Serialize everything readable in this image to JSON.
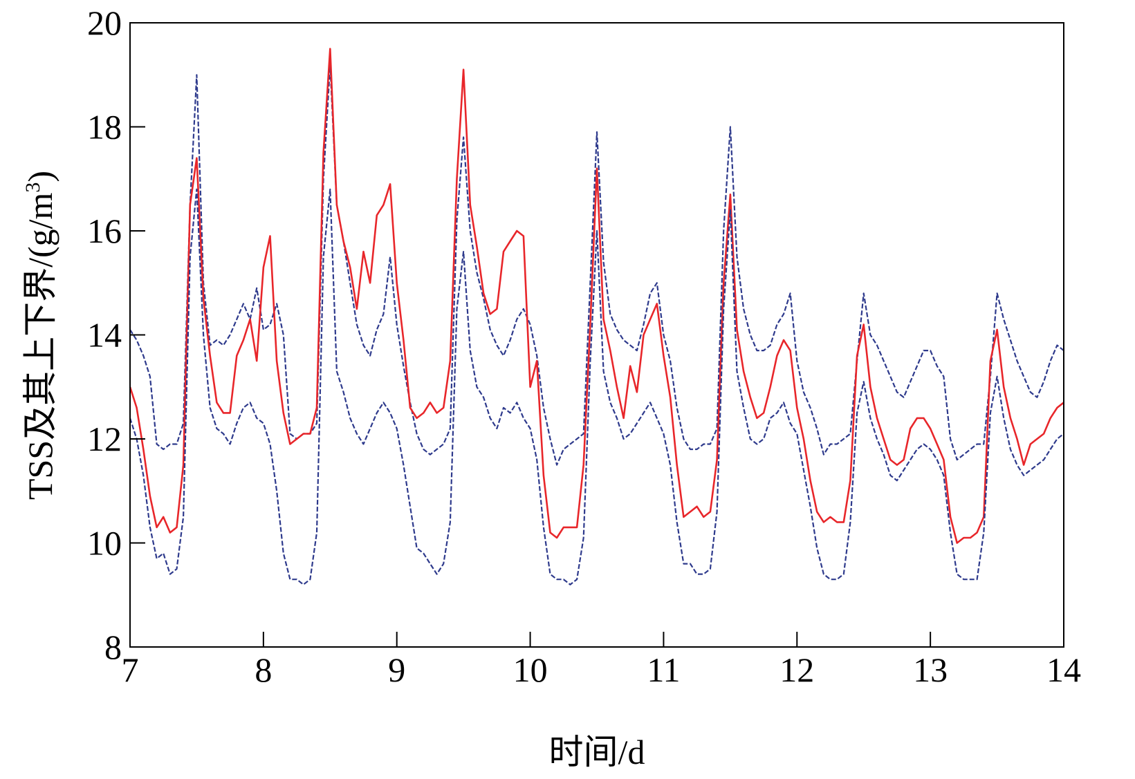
{
  "chart_data": {
    "type": "line",
    "title": "",
    "xlabel": "时间/d",
    "ylabel_main": "TSS及其上下界/(g/m",
    "ylabel_sup": "3",
    "ylabel_close": ")",
    "xlim": [
      7,
      14
    ],
    "ylim": [
      8,
      20
    ],
    "xticks": [
      7,
      8,
      9,
      10,
      11,
      12,
      13,
      14
    ],
    "yticks": [
      8,
      10,
      12,
      14,
      16,
      18,
      20
    ],
    "xtick_labels": [
      "7",
      "8",
      "9",
      "10",
      "11",
      "12",
      "13",
      "14"
    ],
    "ytick_labels": [
      "8",
      "10",
      "12",
      "14",
      "16",
      "18",
      "20"
    ],
    "grid": false,
    "legend": "none",
    "series": [
      {
        "role": "upper bound",
        "color": "#2e3a8c",
        "style": "dashed",
        "x": [
          7.0,
          7.05,
          7.1,
          7.15,
          7.2,
          7.25,
          7.3,
          7.35,
          7.4,
          7.45,
          7.5,
          7.55,
          7.6,
          7.65,
          7.7,
          7.75,
          7.8,
          7.85,
          7.9,
          7.95,
          8.0,
          8.05,
          8.1,
          8.15,
          8.2,
          8.25,
          8.3,
          8.35,
          8.4,
          8.45,
          8.5,
          8.55,
          8.6,
          8.65,
          8.7,
          8.75,
          8.8,
          8.85,
          8.9,
          8.95,
          9.0,
          9.05,
          9.1,
          9.15,
          9.2,
          9.25,
          9.3,
          9.35,
          9.4,
          9.45,
          9.5,
          9.55,
          9.6,
          9.65,
          9.7,
          9.75,
          9.8,
          9.85,
          9.9,
          9.95,
          10.0,
          10.05,
          10.1,
          10.15,
          10.2,
          10.25,
          10.3,
          10.35,
          10.4,
          10.45,
          10.5,
          10.55,
          10.6,
          10.65,
          10.7,
          10.75,
          10.8,
          10.85,
          10.9,
          10.95,
          11.0,
          11.05,
          11.1,
          11.15,
          11.2,
          11.25,
          11.3,
          11.35,
          11.4,
          11.45,
          11.5,
          11.55,
          11.6,
          11.65,
          11.7,
          11.75,
          11.8,
          11.85,
          11.9,
          11.95,
          12.0,
          12.05,
          12.1,
          12.15,
          12.2,
          12.25,
          12.3,
          12.35,
          12.4,
          12.45,
          12.5,
          12.55,
          12.6,
          12.65,
          12.7,
          12.75,
          12.8,
          12.85,
          12.9,
          12.95,
          13.0,
          13.05,
          13.1,
          13.15,
          13.2,
          13.25,
          13.3,
          13.35,
          13.4,
          13.45,
          13.5,
          13.55,
          13.6,
          13.65,
          13.7,
          13.75,
          13.8,
          13.85,
          13.9,
          13.95,
          14.0
        ],
        "y": [
          14.1,
          13.9,
          13.6,
          13.2,
          11.9,
          11.8,
          11.9,
          11.9,
          12.3,
          16.5,
          19.0,
          15.0,
          13.8,
          13.9,
          13.8,
          14.0,
          14.3,
          14.6,
          14.3,
          14.9,
          14.1,
          14.2,
          14.6,
          14.0,
          12.1,
          12.0,
          12.1,
          12.1,
          12.3,
          17.0,
          19.2,
          16.5,
          15.8,
          15.0,
          14.2,
          13.8,
          13.6,
          14.1,
          14.4,
          15.5,
          14.2,
          13.4,
          12.7,
          12.1,
          11.8,
          11.7,
          11.8,
          11.9,
          12.2,
          16.2,
          17.8,
          16.0,
          15.2,
          14.7,
          14.1,
          13.8,
          13.6,
          13.9,
          14.3,
          14.5,
          14.2,
          13.6,
          12.6,
          12.0,
          11.5,
          11.8,
          11.9,
          12.0,
          12.1,
          15.0,
          17.9,
          15.4,
          14.4,
          14.1,
          13.9,
          13.8,
          13.7,
          14.2,
          14.8,
          15.0,
          14.0,
          13.5,
          12.6,
          12.0,
          11.8,
          11.8,
          11.9,
          11.9,
          12.2,
          16.0,
          18.0,
          15.5,
          14.5,
          14.0,
          13.7,
          13.7,
          13.8,
          14.2,
          14.4,
          14.8,
          13.5,
          12.9,
          12.6,
          12.2,
          11.7,
          11.9,
          11.9,
          12.0,
          12.1,
          13.5,
          14.8,
          14.0,
          13.8,
          13.5,
          13.2,
          12.9,
          12.8,
          13.1,
          13.4,
          13.7,
          13.7,
          13.4,
          13.2,
          12.0,
          11.6,
          11.7,
          11.8,
          11.9,
          11.9,
          13.2,
          14.8,
          14.3,
          13.9,
          13.5,
          13.2,
          12.9,
          12.8,
          13.1,
          13.5,
          13.8,
          13.7
        ]
      },
      {
        "role": "TSS",
        "color": "#e8262a",
        "style": "solid",
        "x": [
          7.0,
          7.05,
          7.1,
          7.15,
          7.2,
          7.25,
          7.3,
          7.35,
          7.4,
          7.45,
          7.5,
          7.55,
          7.6,
          7.65,
          7.7,
          7.75,
          7.8,
          7.85,
          7.9,
          7.95,
          8.0,
          8.05,
          8.1,
          8.15,
          8.2,
          8.25,
          8.3,
          8.35,
          8.4,
          8.45,
          8.5,
          8.55,
          8.6,
          8.65,
          8.7,
          8.75,
          8.8,
          8.85,
          8.9,
          8.95,
          9.0,
          9.05,
          9.1,
          9.15,
          9.2,
          9.25,
          9.3,
          9.35,
          9.4,
          9.45,
          9.5,
          9.55,
          9.6,
          9.65,
          9.7,
          9.75,
          9.8,
          9.85,
          9.9,
          9.95,
          10.0,
          10.05,
          10.1,
          10.15,
          10.2,
          10.25,
          10.3,
          10.35,
          10.4,
          10.45,
          10.5,
          10.55,
          10.6,
          10.65,
          10.7,
          10.75,
          10.8,
          10.85,
          10.9,
          10.95,
          11.0,
          11.05,
          11.1,
          11.15,
          11.2,
          11.25,
          11.3,
          11.35,
          11.4,
          11.45,
          11.5,
          11.55,
          11.6,
          11.65,
          11.7,
          11.75,
          11.8,
          11.85,
          11.9,
          11.95,
          12.0,
          12.05,
          12.1,
          12.15,
          12.2,
          12.25,
          12.3,
          12.35,
          12.4,
          12.45,
          12.5,
          12.55,
          12.6,
          12.65,
          12.7,
          12.75,
          12.8,
          12.85,
          12.9,
          12.95,
          13.0,
          13.05,
          13.1,
          13.15,
          13.2,
          13.25,
          13.3,
          13.35,
          13.4,
          13.45,
          13.5,
          13.55,
          13.6,
          13.65,
          13.7,
          13.75,
          13.8,
          13.85,
          13.9,
          13.95,
          14.0
        ],
        "y": [
          13.0,
          12.6,
          11.8,
          10.9,
          10.3,
          10.5,
          10.2,
          10.3,
          11.5,
          16.5,
          17.4,
          14.7,
          13.6,
          12.7,
          12.5,
          12.5,
          13.6,
          13.9,
          14.3,
          13.5,
          15.3,
          15.9,
          13.5,
          12.5,
          11.9,
          12.0,
          12.1,
          12.1,
          12.6,
          17.5,
          19.5,
          16.5,
          15.8,
          15.3,
          14.5,
          15.6,
          15.0,
          16.3,
          16.5,
          16.9,
          15.0,
          13.9,
          12.6,
          12.4,
          12.5,
          12.7,
          12.5,
          12.6,
          13.5,
          17.0,
          19.1,
          16.5,
          15.7,
          14.8,
          14.4,
          14.5,
          15.6,
          15.8,
          16.0,
          15.9,
          13.0,
          13.5,
          11.3,
          10.2,
          10.1,
          10.3,
          10.3,
          10.3,
          11.5,
          14.2,
          17.2,
          14.3,
          13.7,
          13.0,
          12.4,
          13.4,
          12.9,
          14.0,
          14.3,
          14.6,
          13.6,
          12.8,
          11.5,
          10.5,
          10.6,
          10.7,
          10.5,
          10.6,
          11.6,
          15.0,
          16.7,
          14.1,
          13.3,
          12.8,
          12.4,
          12.5,
          13.0,
          13.6,
          13.9,
          13.7,
          12.6,
          12.0,
          11.2,
          10.6,
          10.4,
          10.5,
          10.4,
          10.4,
          11.2,
          13.6,
          14.2,
          13.0,
          12.4,
          12.0,
          11.6,
          11.5,
          11.6,
          12.2,
          12.4,
          12.4,
          12.2,
          11.9,
          11.6,
          10.5,
          10.0,
          10.1,
          10.1,
          10.2,
          10.5,
          13.5,
          14.1,
          13.0,
          12.4,
          12.0,
          11.5,
          11.9,
          12.0,
          12.1,
          12.4,
          12.6,
          12.7
        ]
      },
      {
        "role": "lower bound",
        "color": "#2e3a8c",
        "style": "dashed",
        "x": [
          7.0,
          7.05,
          7.1,
          7.15,
          7.2,
          7.25,
          7.3,
          7.35,
          7.4,
          7.45,
          7.5,
          7.55,
          7.6,
          7.65,
          7.7,
          7.75,
          7.8,
          7.85,
          7.9,
          7.95,
          8.0,
          8.05,
          8.1,
          8.15,
          8.2,
          8.25,
          8.3,
          8.35,
          8.4,
          8.45,
          8.5,
          8.55,
          8.6,
          8.65,
          8.7,
          8.75,
          8.8,
          8.85,
          8.9,
          8.95,
          9.0,
          9.05,
          9.1,
          9.15,
          9.2,
          9.25,
          9.3,
          9.35,
          9.4,
          9.45,
          9.5,
          9.55,
          9.6,
          9.65,
          9.7,
          9.75,
          9.8,
          9.85,
          9.9,
          9.95,
          10.0,
          10.05,
          10.1,
          10.15,
          10.2,
          10.25,
          10.3,
          10.35,
          10.4,
          10.45,
          10.5,
          10.55,
          10.6,
          10.65,
          10.7,
          10.75,
          10.8,
          10.85,
          10.9,
          10.95,
          11.0,
          11.05,
          11.1,
          11.15,
          11.2,
          11.25,
          11.3,
          11.35,
          11.4,
          11.45,
          11.5,
          11.55,
          11.6,
          11.65,
          11.7,
          11.75,
          11.8,
          11.85,
          11.9,
          11.95,
          12.0,
          12.05,
          12.1,
          12.15,
          12.2,
          12.25,
          12.3,
          12.35,
          12.4,
          12.45,
          12.5,
          12.55,
          12.6,
          12.65,
          12.7,
          12.75,
          12.8,
          12.85,
          12.9,
          12.95,
          13.0,
          13.05,
          13.1,
          13.15,
          13.2,
          13.25,
          13.3,
          13.35,
          13.4,
          13.45,
          13.5,
          13.55,
          13.6,
          13.65,
          13.7,
          13.75,
          13.8,
          13.85,
          13.9,
          13.95,
          14.0
        ],
        "y": [
          12.4,
          12.0,
          11.3,
          10.3,
          9.7,
          9.8,
          9.4,
          9.5,
          10.5,
          15.5,
          16.8,
          14.0,
          12.6,
          12.2,
          12.1,
          11.9,
          12.3,
          12.6,
          12.7,
          12.4,
          12.3,
          11.9,
          11.0,
          9.8,
          9.3,
          9.3,
          9.2,
          9.3,
          10.2,
          15.5,
          16.8,
          13.3,
          12.9,
          12.4,
          12.1,
          11.9,
          12.2,
          12.5,
          12.7,
          12.5,
          12.2,
          11.5,
          10.7,
          9.9,
          9.8,
          9.6,
          9.4,
          9.6,
          10.4,
          14.5,
          15.6,
          13.7,
          13.0,
          12.8,
          12.4,
          12.2,
          12.6,
          12.5,
          12.7,
          12.4,
          12.2,
          11.6,
          10.3,
          9.4,
          9.3,
          9.3,
          9.2,
          9.3,
          10.1,
          13.5,
          16.0,
          13.3,
          12.7,
          12.4,
          12.0,
          12.1,
          12.3,
          12.5,
          12.7,
          12.4,
          12.1,
          11.5,
          10.4,
          9.6,
          9.6,
          9.4,
          9.4,
          9.5,
          10.6,
          14.5,
          16.4,
          13.3,
          12.6,
          12.0,
          11.9,
          12.0,
          12.4,
          12.5,
          12.7,
          12.3,
          12.1,
          11.4,
          10.7,
          9.9,
          9.4,
          9.3,
          9.3,
          9.4,
          10.4,
          12.5,
          13.1,
          12.4,
          12.0,
          11.7,
          11.3,
          11.2,
          11.4,
          11.6,
          11.8,
          11.9,
          11.8,
          11.6,
          11.3,
          10.2,
          9.4,
          9.3,
          9.3,
          9.3,
          10.2,
          12.5,
          13.2,
          12.4,
          11.8,
          11.5,
          11.3,
          11.4,
          11.5,
          11.6,
          11.8,
          12.0,
          12.1
        ]
      }
    ]
  }
}
